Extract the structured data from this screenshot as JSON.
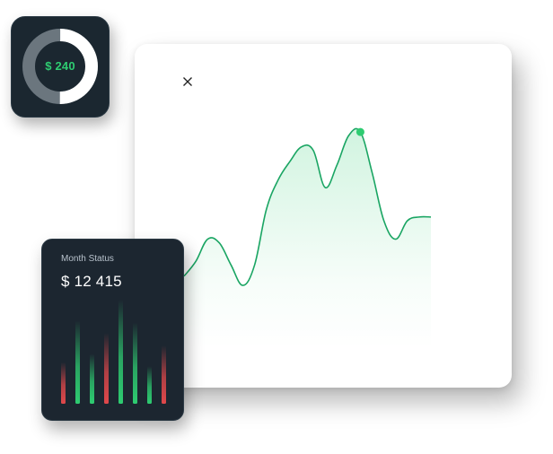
{
  "donut": {
    "value_label": "$ 240",
    "fraction": 0.5,
    "colors": {
      "fill": "#ffffff",
      "track": "#6b767e"
    }
  },
  "chart": {
    "close_icon": "close-icon",
    "line_color": "#1aa563",
    "area_color": "#2ecc71"
  },
  "chart_data": {
    "type": "area",
    "x": [
      0,
      1,
      2,
      3,
      4,
      5,
      6,
      7,
      8,
      9,
      10,
      11,
      12,
      13,
      14,
      15,
      16,
      17,
      18,
      19,
      20,
      21
    ],
    "values": [
      20,
      28,
      40,
      38,
      26,
      15,
      26,
      56,
      72,
      82,
      90,
      88,
      68,
      80,
      96,
      98,
      76,
      50,
      40,
      50,
      52,
      52
    ],
    "highlight_index": 15,
    "grid": false
  },
  "status": {
    "label": "Month Status",
    "amount": "$ 12 415",
    "bars": [
      {
        "value": 0.4,
        "color": "red"
      },
      {
        "value": 0.8,
        "color": "green"
      },
      {
        "value": 0.48,
        "color": "green"
      },
      {
        "value": 0.68,
        "color": "red"
      },
      {
        "value": 1.0,
        "color": "green"
      },
      {
        "value": 0.78,
        "color": "green"
      },
      {
        "value": 0.36,
        "color": "green"
      },
      {
        "value": 0.56,
        "color": "red"
      }
    ],
    "colors": {
      "green": "#2ecc71",
      "red": "#e0484b"
    }
  }
}
